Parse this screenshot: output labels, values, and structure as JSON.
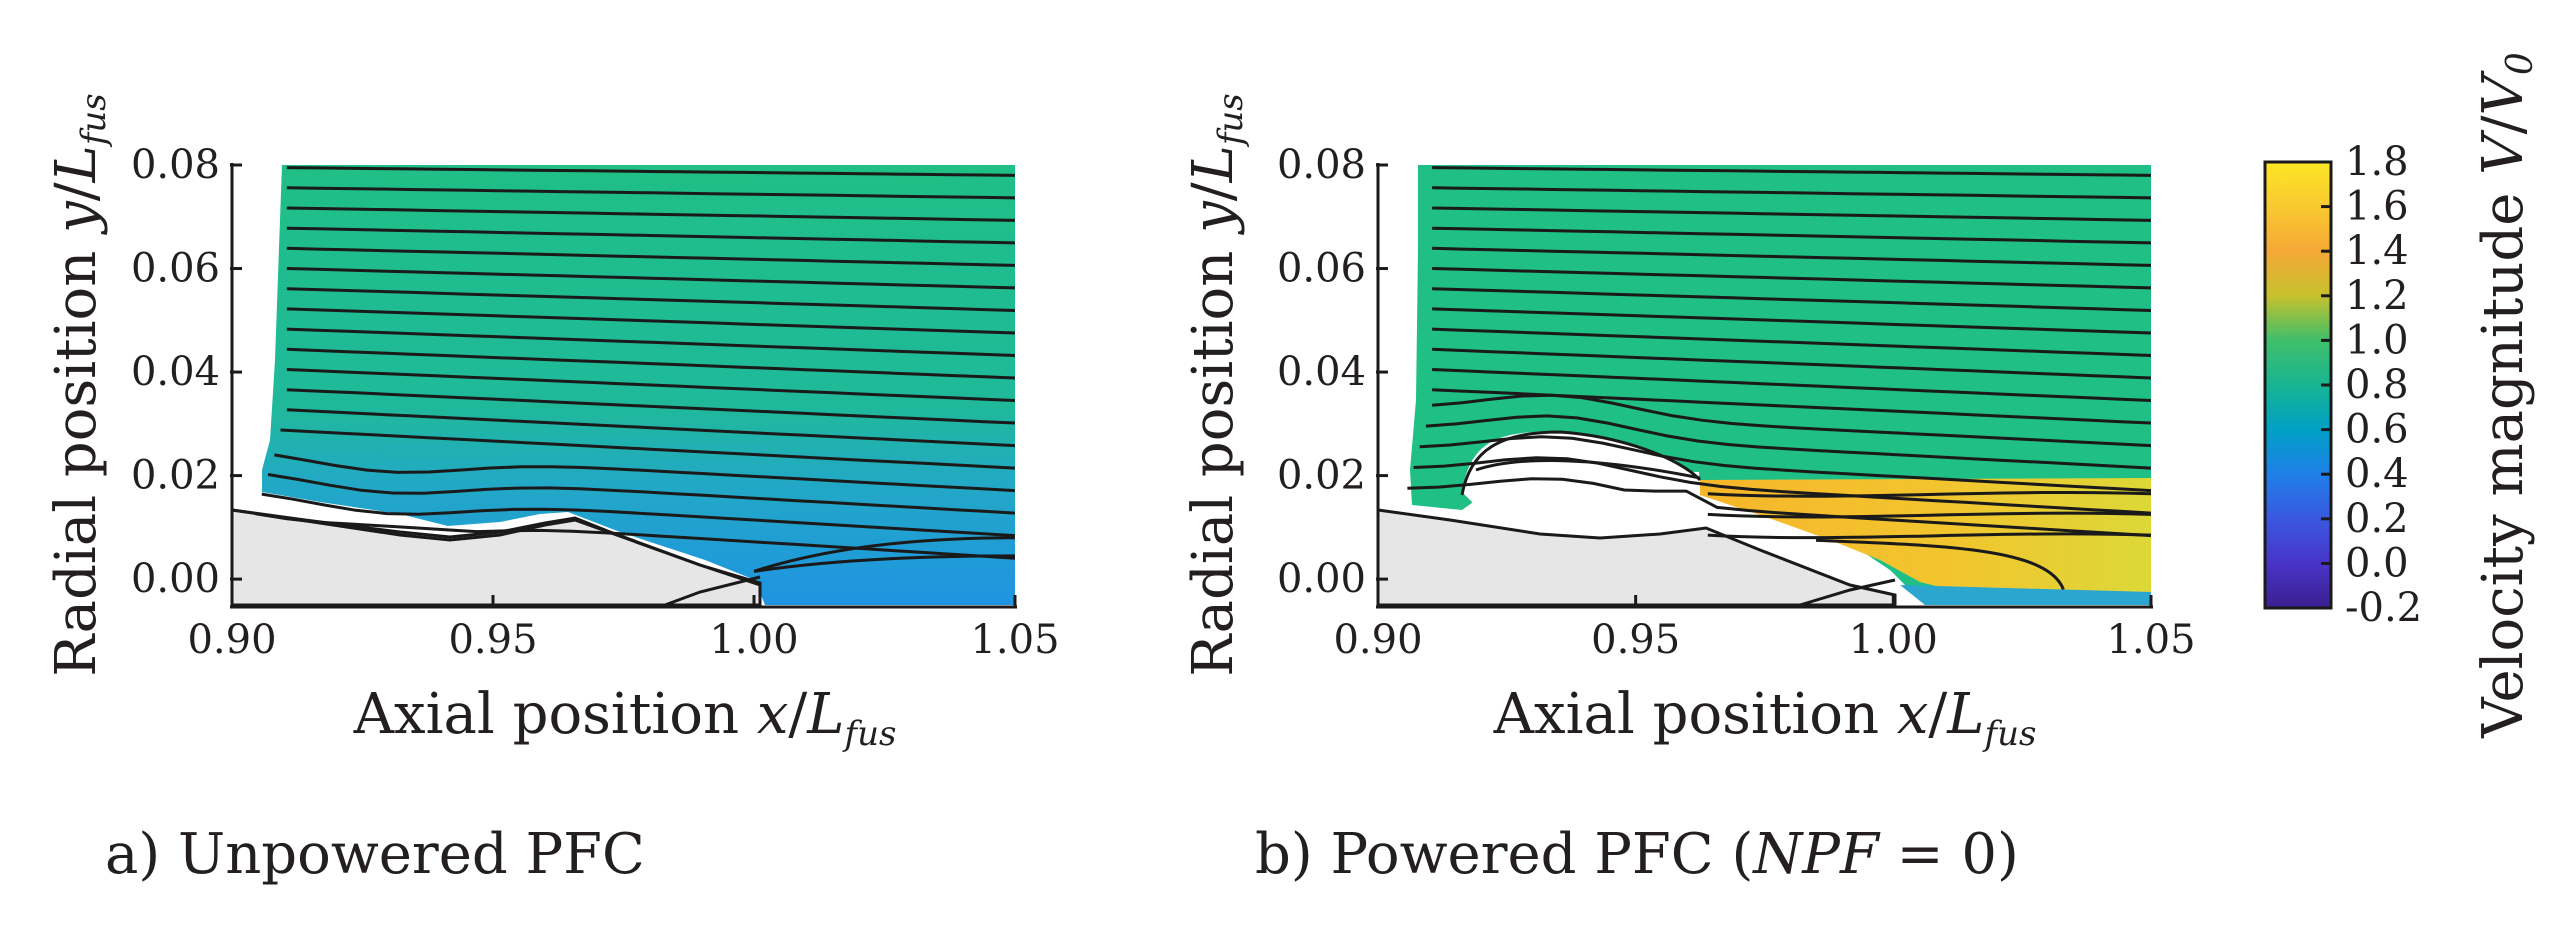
{
  "chart_data": [
    {
      "type": "heatmap",
      "panel": "a",
      "caption": "a) Unpowered PFC",
      "xlabel": "Axial position x/L_fus",
      "ylabel": "Radial position y/L_fus",
      "xlim": [
        0.9,
        1.05
      ],
      "ylim": [
        -0.005,
        0.08
      ],
      "xticks": [
        "0.90",
        "0.95",
        "1.00",
        "1.05"
      ],
      "yticks": [
        "0.00",
        "0.02",
        "0.04",
        "0.06",
        "0.08"
      ],
      "field": "Velocity magnitude V/V0",
      "regions": [
        {
          "description": "freestream",
          "x_range": [
            0.91,
            1.05
          ],
          "y_range": [
            0.02,
            0.08
          ],
          "value": 1.0
        },
        {
          "description": "boundary layer near fuselage",
          "x_range": [
            0.905,
            1.05
          ],
          "y_range": [
            0.0,
            0.02
          ],
          "value": 0.45
        }
      ],
      "streamline_count": 18
    },
    {
      "type": "heatmap",
      "panel": "b",
      "caption": "b) Powered PFC (NPF = 0)",
      "xlabel": "Axial position x/L_fus",
      "ylabel": "Radial position y/L_fus",
      "xlim": [
        0.9,
        1.05
      ],
      "ylim": [
        -0.005,
        0.08
      ],
      "xticks": [
        "0.90",
        "0.95",
        "1.00",
        "1.05"
      ],
      "yticks": [
        "0.00",
        "0.02",
        "0.04",
        "0.06",
        "0.08"
      ],
      "field": "Velocity magnitude V/V0",
      "regions": [
        {
          "description": "freestream",
          "x_range": [
            0.91,
            1.05
          ],
          "y_range": [
            0.02,
            0.08
          ],
          "value": 1.0
        },
        {
          "description": "fan jet exhaust",
          "x_range": [
            0.963,
            1.05
          ],
          "y_range": [
            0.0,
            0.019
          ],
          "value": 1.5
        }
      ],
      "streamline_count": 17
    }
  ],
  "colorbar": {
    "label": "Velocity magnitude V/V0",
    "min": -0.2,
    "max": 1.8,
    "ticks": [
      "1.8",
      "1.6",
      "1.4",
      "1.2",
      "1.0",
      "0.8",
      "0.6",
      "0.4",
      "0.2",
      "0.0",
      "-0.2"
    ],
    "colors": [
      "#fde725",
      "#f9c930",
      "#f5a836",
      "#c6c12d",
      "#3fbf6a",
      "#18b592",
      "#00a0c6",
      "#1f80e8",
      "#3a58e0",
      "#4834c8",
      "#3b1f8f"
    ]
  },
  "colors": {
    "freestream": "#1fbf86",
    "boundary_layer": "#1ea3d6",
    "jet": "#f5b52a",
    "body": "#e6e6e6",
    "streamline": "#1a1a1a"
  }
}
